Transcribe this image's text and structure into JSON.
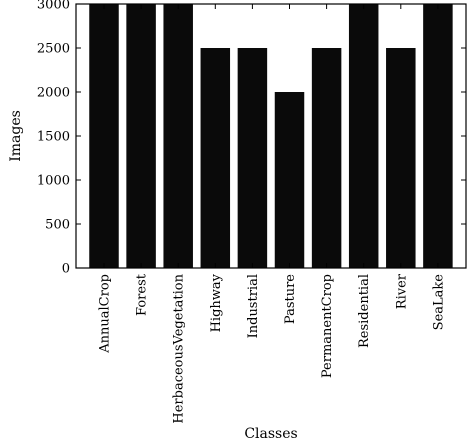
{
  "chart_data": {
    "type": "bar",
    "title": "",
    "xlabel": "Classes",
    "ylabel": "Images",
    "ylim": [
      0,
      3000
    ],
    "yticks": [
      0,
      500,
      1000,
      1500,
      2000,
      2500,
      3000
    ],
    "categories": [
      "AnnualCrop",
      "Forest",
      "HerbaceousVegetation",
      "Highway",
      "Industrial",
      "Pasture",
      "PermanentCrop",
      "Residential",
      "River",
      "SeaLake"
    ],
    "values": [
      3000,
      3000,
      3000,
      2500,
      2500,
      2000,
      2500,
      3000,
      2500,
      3000
    ],
    "bar_color": "#0a0a0a",
    "grid": false,
    "legend": "none"
  }
}
